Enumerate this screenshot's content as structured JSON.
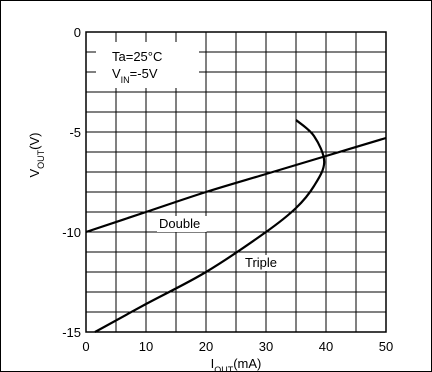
{
  "chart_data": {
    "type": "line",
    "title": "",
    "xlabel": {
      "main": "I",
      "sub": "OUT",
      "unit": "(mA)"
    },
    "ylabel": {
      "main": "V",
      "sub": "OUT",
      "unit": "(V)"
    },
    "xlim": [
      0,
      50
    ],
    "ylim": [
      -15,
      0
    ],
    "x_ticks": [
      0,
      10,
      20,
      30,
      40,
      50
    ],
    "y_ticks": [
      0,
      -5,
      -10,
      -15
    ],
    "x_tick_labels": [
      "0",
      "10",
      "20",
      "30",
      "40",
      "50"
    ],
    "y_tick_labels": [
      "0",
      "-5",
      "-10",
      "-15"
    ],
    "grid": {
      "x_step": 5,
      "y_step": 1,
      "visible": true
    },
    "legend": {
      "position": "top-left",
      "conditions": [
        {
          "main": "Ta=25°C"
        },
        {
          "main": "V",
          "sub": "IN",
          "rest": "=-5V"
        }
      ]
    },
    "series": [
      {
        "name": "Double",
        "x": [
          0,
          10,
          20,
          30,
          40,
          50
        ],
        "y": [
          -10.0,
          -9.0,
          -8.0,
          -7.1,
          -6.2,
          -5.3
        ]
      },
      {
        "name": "Triple",
        "x": [
          1.5,
          10,
          20,
          30,
          35,
          38,
          39.7,
          38,
          35
        ],
        "y": [
          -15.0,
          -13.6,
          -12.0,
          -10.0,
          -8.8,
          -7.7,
          -6.5,
          -5.2,
          -4.4
        ]
      }
    ]
  }
}
